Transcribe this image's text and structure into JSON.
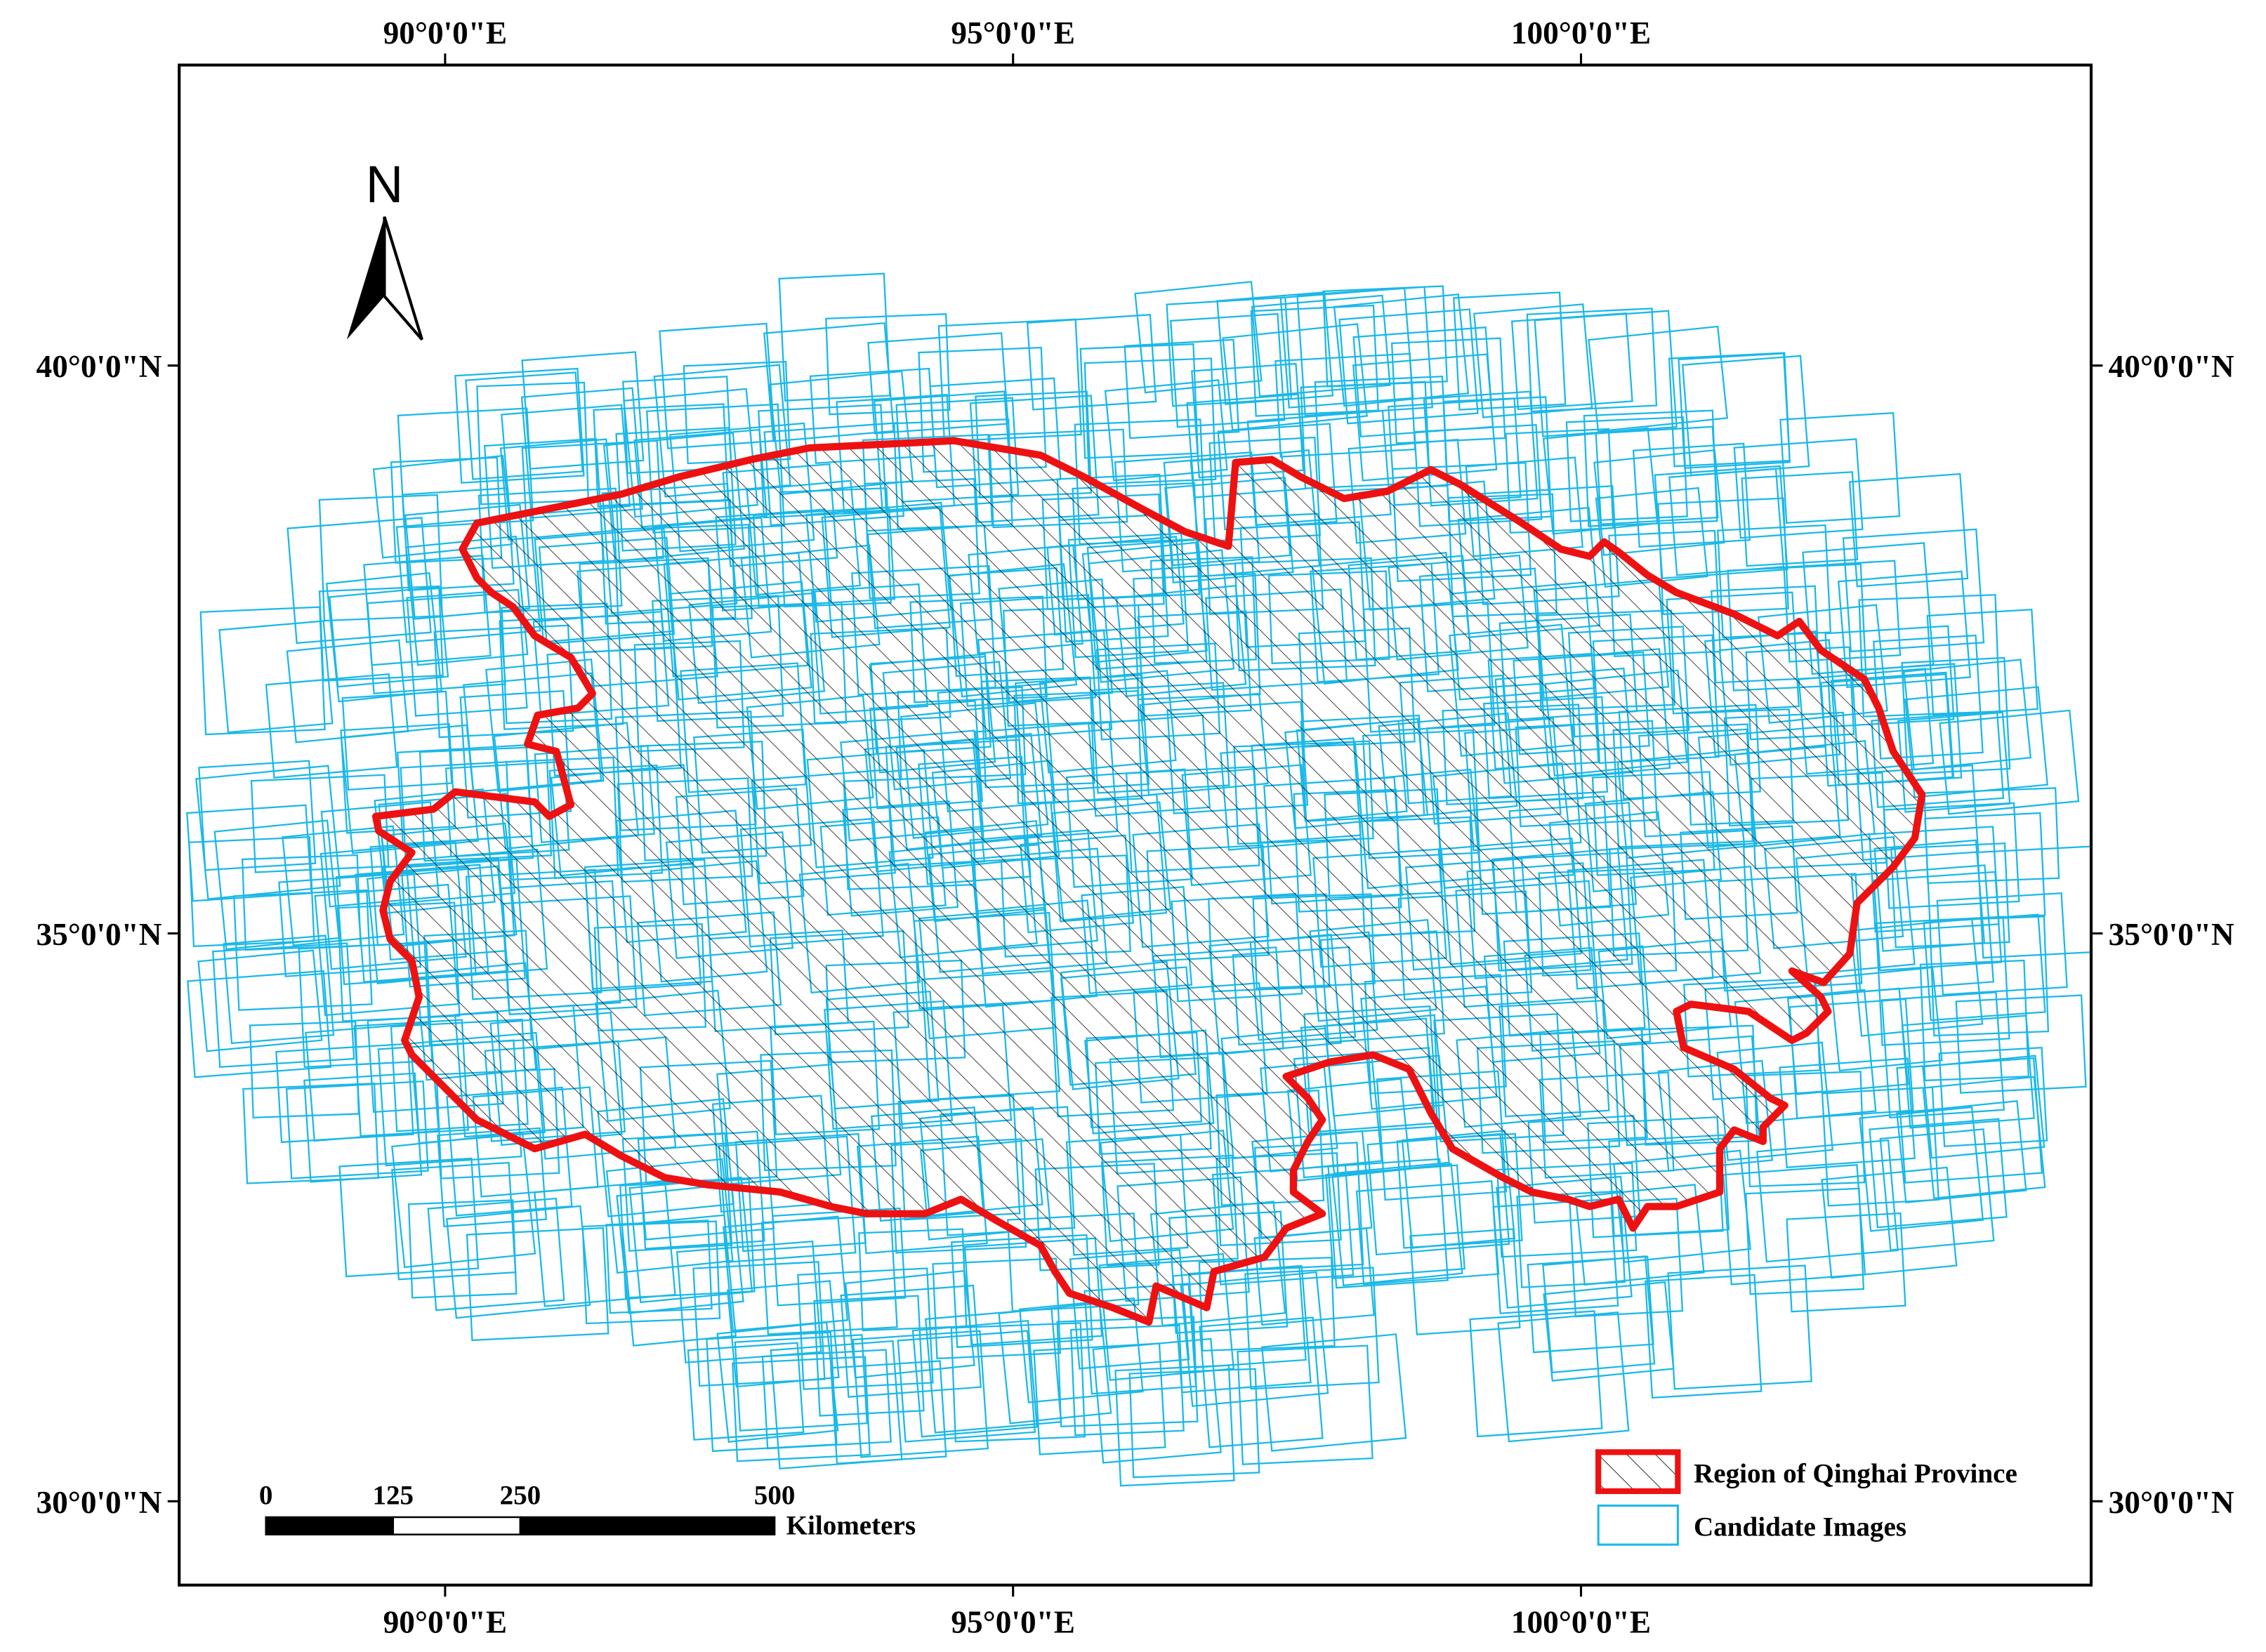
{
  "map": {
    "x_labels": [
      "90°0'0\"E",
      "95°0'0\"E",
      "100°0'0\"E"
    ],
    "y_labels": [
      "40°0'0\"N",
      "35°0'0\"N",
      "30°0'0\"N"
    ],
    "north_label": "N",
    "scale_bar": {
      "ticks": [
        0,
        125,
        250,
        500
      ],
      "unit": "Kilometers"
    },
    "legend": [
      "Region of Qinghai Province",
      "Candidate Images"
    ]
  }
}
